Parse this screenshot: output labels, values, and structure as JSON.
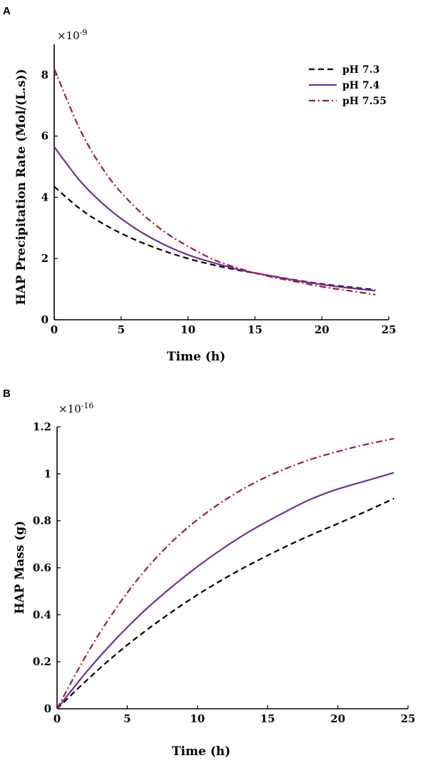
{
  "chart_data": [
    {
      "type": "line",
      "panel_label": "A",
      "xlabel": "Time (h)",
      "ylabel": "HAP Precipitation Rate (Mol/(L.s))",
      "y_multiplier_base": "×10",
      "y_multiplier_exponent": "-9",
      "xlim": [
        0,
        25
      ],
      "ylim": [
        0,
        9
      ],
      "xticks": [
        0,
        5,
        10,
        15,
        20,
        25
      ],
      "xtick_labels": [
        "0",
        "5",
        "10",
        "15",
        "20",
        "25"
      ],
      "yticks": [
        0,
        2,
        4,
        6,
        8
      ],
      "ytick_labels": [
        "0",
        "2",
        "4",
        "6",
        "8"
      ],
      "legend_position": "top-right",
      "grid": false,
      "series": [
        {
          "name": "pH 7.3",
          "color": "#000000",
          "style": "dashed",
          "x": [
            0,
            2,
            4,
            6,
            8,
            10,
            12,
            14,
            16,
            18,
            20,
            22,
            24
          ],
          "y": [
            4.35,
            3.6,
            3.05,
            2.62,
            2.28,
            2.0,
            1.78,
            1.6,
            1.45,
            1.3,
            1.17,
            1.07,
            0.98
          ]
        },
        {
          "name": "pH 7.4",
          "color": "#7030a0",
          "style": "solid",
          "x": [
            0,
            2,
            4,
            6,
            8,
            10,
            12,
            14,
            16,
            18,
            20,
            22,
            24
          ],
          "y": [
            5.65,
            4.5,
            3.65,
            3.0,
            2.5,
            2.12,
            1.85,
            1.62,
            1.45,
            1.29,
            1.15,
            1.04,
            0.95
          ]
        },
        {
          "name": "pH 7.55",
          "color": "#a01d2c",
          "style": "dashdot",
          "x": [
            0,
            2,
            4,
            6,
            8,
            10,
            12,
            14,
            16,
            18,
            20,
            22,
            24
          ],
          "y": [
            8.2,
            6.15,
            4.7,
            3.7,
            2.95,
            2.4,
            1.95,
            1.65,
            1.42,
            1.25,
            1.08,
            0.95,
            0.82
          ]
        }
      ]
    },
    {
      "type": "line",
      "panel_label": "B",
      "xlabel": "Time (h)",
      "ylabel": "HAP Mass (g)",
      "y_multiplier_base": "×10",
      "y_multiplier_exponent": "-16",
      "xlim": [
        0,
        25
      ],
      "ylim": [
        0,
        1.2
      ],
      "xticks": [
        0,
        5,
        10,
        15,
        20,
        25
      ],
      "xtick_labels": [
        "0",
        "5",
        "10",
        "15",
        "20",
        "25"
      ],
      "yticks": [
        0,
        0.2,
        0.4,
        0.6,
        0.8,
        1.0,
        1.2
      ],
      "ytick_labels": [
        "0",
        "0.2",
        "0.4",
        "0.6",
        "0.8",
        "1",
        "1.2"
      ],
      "grid": false,
      "series": [
        {
          "color": "#000000",
          "style": "dashed",
          "x": [
            0,
            2,
            4,
            6,
            8,
            10,
            12,
            14,
            16,
            18,
            20,
            22,
            24
          ],
          "y": [
            0,
            0.115,
            0.222,
            0.318,
            0.405,
            0.485,
            0.557,
            0.622,
            0.682,
            0.737,
            0.788,
            0.84,
            0.895
          ]
        },
        {
          "color": "#7030a0",
          "style": "solid",
          "x": [
            0,
            2,
            4,
            6,
            8,
            10,
            12,
            14,
            16,
            18,
            20,
            22,
            24
          ],
          "y": [
            0,
            0.15,
            0.285,
            0.405,
            0.51,
            0.605,
            0.69,
            0.765,
            0.83,
            0.89,
            0.935,
            0.97,
            1.005
          ]
        },
        {
          "color": "#a01d2c",
          "style": "dashdot",
          "x": [
            0,
            2,
            4,
            6,
            8,
            10,
            12,
            14,
            16,
            18,
            20,
            22,
            24
          ],
          "y": [
            0,
            0.22,
            0.41,
            0.57,
            0.7,
            0.805,
            0.89,
            0.96,
            1.015,
            1.06,
            1.095,
            1.125,
            1.15
          ]
        }
      ]
    }
  ]
}
